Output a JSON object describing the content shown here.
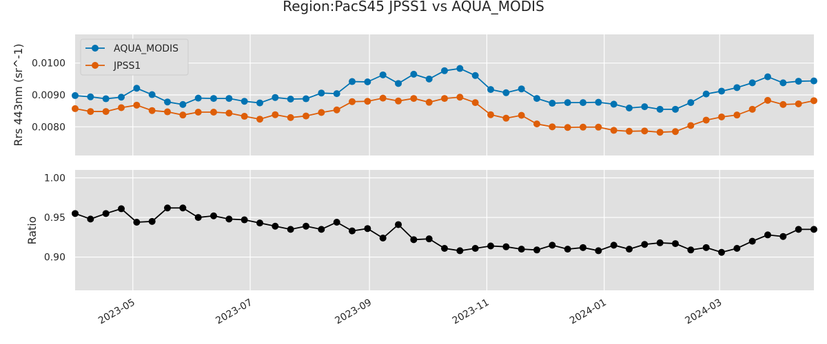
{
  "title": "Region:PacS45 JPSS1 vs AQUA_MODIS",
  "colors": {
    "aqua": "#0173b2",
    "jpss": "#de5e08",
    "ratio": "#000000",
    "panel_bg": "#e0e0e0",
    "grid": "#ffffff"
  },
  "chart_data": [
    {
      "type": "line",
      "ylabel": "Rrs 443nm (sr^-1)",
      "ylim": [
        0.0071,
        0.0109
      ],
      "yticks": [
        0.008,
        0.009,
        0.01
      ],
      "ytick_labels": [
        "0.0080",
        "0.0090",
        "0.0100"
      ],
      "legend_position": "top-left",
      "grid": true,
      "x": [
        "2023-04-01",
        "2023-04-09",
        "2023-04-17",
        "2023-04-25",
        "2023-05-03",
        "2023-05-11",
        "2023-05-19",
        "2023-05-27",
        "2023-06-04",
        "2023-06-12",
        "2023-06-20",
        "2023-06-28",
        "2023-07-06",
        "2023-07-14",
        "2023-07-22",
        "2023-07-30",
        "2023-08-07",
        "2023-08-15",
        "2023-08-23",
        "2023-08-31",
        "2023-09-08",
        "2023-09-16",
        "2023-09-24",
        "2023-10-02",
        "2023-10-10",
        "2023-10-18",
        "2023-10-26",
        "2023-11-03",
        "2023-11-11",
        "2023-11-19",
        "2023-11-27",
        "2023-12-05",
        "2023-12-13",
        "2023-12-21",
        "2023-12-29",
        "2024-01-06",
        "2024-01-14",
        "2024-01-22",
        "2024-01-30",
        "2024-02-07",
        "2024-02-15",
        "2024-02-23",
        "2024-03-02",
        "2024-03-10",
        "2024-03-18",
        "2024-03-26",
        "2024-04-03",
        "2024-04-11",
        "2024-04-19"
      ],
      "series": [
        {
          "name": "AQUA_MODIS",
          "values": [
            0.00898,
            0.00894,
            0.00888,
            0.00893,
            0.00921,
            0.00901,
            0.00878,
            0.0087,
            0.0089,
            0.00889,
            0.00889,
            0.0088,
            0.00875,
            0.00892,
            0.00887,
            0.00888,
            0.00906,
            0.00904,
            0.00942,
            0.00941,
            0.00963,
            0.00936,
            0.00965,
            0.0095,
            0.00976,
            0.00983,
            0.00961,
            0.00917,
            0.00907,
            0.00919,
            0.00889,
            0.00874,
            0.00876,
            0.00876,
            0.00877,
            0.00871,
            0.00859,
            0.00863,
            0.00855,
            0.00855,
            0.00876,
            0.00903,
            0.00912,
            0.00923,
            0.00938,
            0.00957,
            0.00938,
            0.00943,
            0.00944
          ]
        },
        {
          "name": "JPSS1",
          "values": [
            0.00857,
            0.00848,
            0.00848,
            0.0086,
            0.00868,
            0.00851,
            0.00847,
            0.00837,
            0.00846,
            0.00846,
            0.00843,
            0.00833,
            0.00824,
            0.00838,
            0.00829,
            0.00834,
            0.00845,
            0.00853,
            0.00879,
            0.0088,
            0.0089,
            0.00881,
            0.00889,
            0.00877,
            0.00889,
            0.00893,
            0.00876,
            0.00838,
            0.00827,
            0.00836,
            0.00809,
            0.008,
            0.00798,
            0.00799,
            0.00799,
            0.00789,
            0.00786,
            0.00787,
            0.00783,
            0.00785,
            0.00804,
            0.00821,
            0.00831,
            0.00837,
            0.00855,
            0.00883,
            0.0087,
            0.00872,
            0.00882
          ]
        }
      ]
    },
    {
      "type": "line",
      "ylabel": "Ratio",
      "ylim": [
        0.858,
        1.01
      ],
      "yticks": [
        0.9,
        0.95,
        1.0
      ],
      "ytick_labels": [
        "0.90",
        "0.95",
        "1.00"
      ],
      "xlim": [
        "2023-04-01",
        "2024-04-19"
      ],
      "xticks": [
        "2023-05-01",
        "2023-07-01",
        "2023-09-01",
        "2023-11-01",
        "2024-01-01",
        "2024-03-01"
      ],
      "xtick_labels": [
        "2023-05",
        "2023-07",
        "2023-09",
        "2023-11",
        "2024-01",
        "2024-03"
      ],
      "grid": true,
      "x": [
        "2023-04-01",
        "2023-04-09",
        "2023-04-17",
        "2023-04-25",
        "2023-05-03",
        "2023-05-11",
        "2023-05-19",
        "2023-05-27",
        "2023-06-04",
        "2023-06-12",
        "2023-06-20",
        "2023-06-28",
        "2023-07-06",
        "2023-07-14",
        "2023-07-22",
        "2023-07-30",
        "2023-08-07",
        "2023-08-15",
        "2023-08-23",
        "2023-08-31",
        "2023-09-08",
        "2023-09-16",
        "2023-09-24",
        "2023-10-02",
        "2023-10-10",
        "2023-10-18",
        "2023-10-26",
        "2023-11-03",
        "2023-11-11",
        "2023-11-19",
        "2023-11-27",
        "2023-12-05",
        "2023-12-13",
        "2023-12-21",
        "2023-12-29",
        "2024-01-06",
        "2024-01-14",
        "2024-01-22",
        "2024-01-30",
        "2024-02-07",
        "2024-02-15",
        "2024-02-23",
        "2024-03-02",
        "2024-03-10",
        "2024-03-18",
        "2024-03-26",
        "2024-04-03",
        "2024-04-11",
        "2024-04-19"
      ],
      "series": [
        {
          "values": [
            0.955,
            0.948,
            0.955,
            0.961,
            0.944,
            0.945,
            0.962,
            0.962,
            0.95,
            0.952,
            0.948,
            0.947,
            0.943,
            0.939,
            0.935,
            0.939,
            0.935,
            0.944,
            0.933,
            0.936,
            0.924,
            0.941,
            0.922,
            0.923,
            0.911,
            0.908,
            0.911,
            0.914,
            0.913,
            0.91,
            0.909,
            0.915,
            0.91,
            0.912,
            0.908,
            0.915,
            0.91,
            0.916,
            0.918,
            0.917,
            0.909,
            0.912,
            0.906,
            0.911,
            0.92,
            0.928,
            0.926,
            0.935,
            0.935
          ]
        }
      ]
    }
  ]
}
